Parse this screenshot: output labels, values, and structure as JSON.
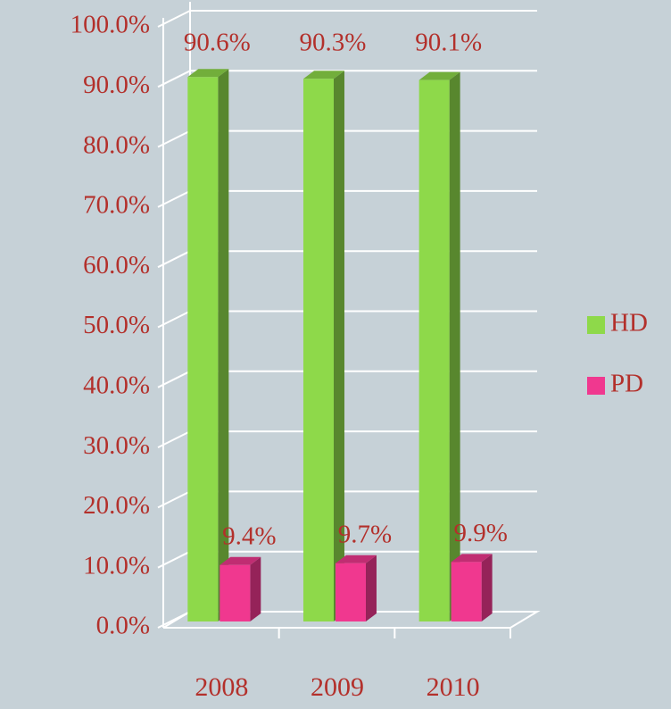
{
  "chart_data": {
    "type": "bar",
    "categories": [
      "2008",
      "2009",
      "2010"
    ],
    "series": [
      {
        "name": "HD",
        "color": "#8ed94a",
        "values": [
          90.6,
          90.3,
          90.1
        ],
        "value_labels": [
          "90.6%",
          "90.3%",
          "90.1%"
        ]
      },
      {
        "name": "PD",
        "color": "#f0388f",
        "values": [
          9.4,
          9.7,
          9.9
        ],
        "value_labels": [
          "9.4%",
          "9.7%",
          "9.9%"
        ]
      }
    ],
    "ylim": [
      0,
      100
    ],
    "yticks": [
      {
        "value": 0,
        "label": "0.0%"
      },
      {
        "value": 10,
        "label": "10.0%"
      },
      {
        "value": 20,
        "label": "20.0%"
      },
      {
        "value": 30,
        "label": "30.0%"
      },
      {
        "value": 40,
        "label": "40.0%"
      },
      {
        "value": 50,
        "label": "50.0%"
      },
      {
        "value": 60,
        "label": "60.0%"
      },
      {
        "value": 70,
        "label": "70.0%"
      },
      {
        "value": 80,
        "label": "80.0%"
      },
      {
        "value": 90,
        "label": "90.0%"
      },
      {
        "value": 100,
        "label": "100.0%"
      }
    ],
    "grid": true,
    "legend": "right"
  }
}
